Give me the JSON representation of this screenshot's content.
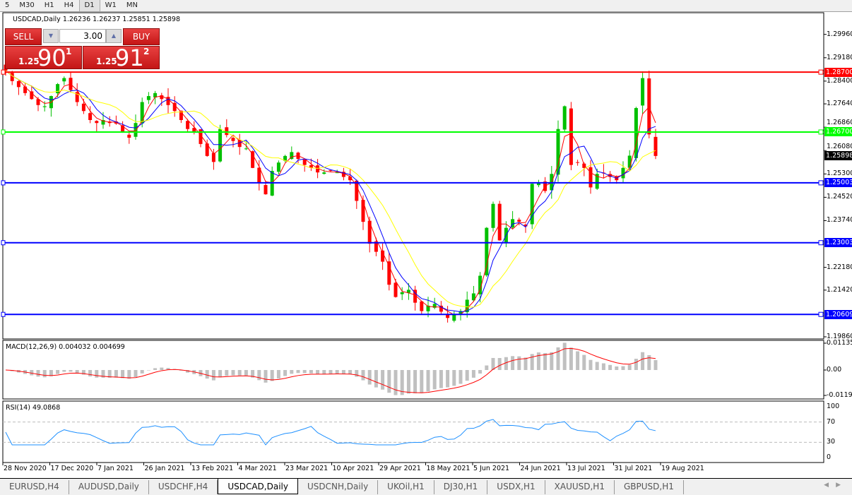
{
  "timeframes": [
    "5",
    "M30",
    "H1",
    "H4",
    "D1",
    "W1",
    "MN"
  ],
  "selected_timeframe": "D1",
  "chart": {
    "header": "USDCAD,Daily  1.26236 1.26237 1.25851 1.25898",
    "symbol": "USDCAD",
    "period": "Daily"
  },
  "trade_panel": {
    "sell_label": "SELL",
    "buy_label": "BUY",
    "volume": "3.00",
    "bid": {
      "prefix": "1.25",
      "big": "90",
      "sup": "1"
    },
    "ask": {
      "prefix": "1.25",
      "big": "91",
      "sup": "2"
    }
  },
  "price_axis": {
    "ticks": [
      "1.29960",
      "1.29180",
      "1.28400",
      "1.27640",
      "1.26860",
      "1.26080",
      "1.25300",
      "1.24520",
      "1.23740",
      "1.22180",
      "1.21420",
      "1.19860"
    ],
    "min": 1.1986,
    "max": 1.2996,
    "current": "1.25898"
  },
  "horizontal_lines": [
    {
      "price": 1.287,
      "label": "1.28700",
      "color": "#ff0000"
    },
    {
      "price": 1.267,
      "label": "1.26700",
      "color": "#00ff00"
    },
    {
      "price": 1.25003,
      "label": "1.25003",
      "color": "#0000ff"
    },
    {
      "price": 1.23003,
      "label": "1.23003",
      "color": "#0000ff"
    },
    {
      "price": 1.20609,
      "label": "1.20609",
      "color": "#0000ff"
    }
  ],
  "colors": {
    "bull": "#00c000",
    "bear": "#ff0000",
    "ma_fast": "#ff0000",
    "ma_mid": "#0000ff",
    "ma_slow": "#ffff00",
    "macd_hist": "#c0c0c0",
    "macd_signal": "#ff0000",
    "rsi": "#1e90ff"
  },
  "closes": [
    1.2875,
    1.284,
    1.282,
    1.28,
    1.278,
    1.276,
    1.2756,
    1.279,
    1.283,
    1.285,
    1.281,
    1.277,
    1.274,
    1.271,
    1.27,
    1.271,
    1.27,
    1.2698,
    1.267,
    1.2651,
    1.27,
    1.277,
    1.279,
    1.28,
    1.278,
    1.276,
    1.274,
    1.271,
    1.268,
    1.267,
    1.263,
    1.259,
    1.257,
    1.268,
    1.266,
    1.264,
    1.262,
    1.2615,
    1.255,
    1.25,
    1.2462,
    1.254,
    1.2568,
    1.259,
    1.2603,
    1.258,
    1.256,
    1.255,
    1.2535,
    1.2535,
    1.254,
    1.2535,
    1.252,
    1.2509,
    1.244,
    1.237,
    1.2297,
    1.227,
    1.2237,
    1.216,
    1.2119,
    1.2135,
    1.2143,
    1.21,
    1.2072,
    1.209,
    1.2096,
    1.207,
    1.2049,
    1.206,
    1.2072,
    1.211,
    1.2131,
    1.219,
    1.235,
    1.243,
    1.2308,
    1.235,
    1.2379,
    1.237,
    1.2355,
    1.2497,
    1.25,
    1.2473,
    1.253,
    1.268,
    1.2756,
    1.256,
    1.2568,
    1.255,
    1.2485,
    1.253,
    1.2533,
    1.252,
    1.2509,
    1.255,
    1.2591,
    1.275,
    1.285,
    1.2662,
    1.259
  ],
  "macd": {
    "label": "MACD(12,26,9) 0.004032 0.004699",
    "ticks": [
      "0.01135",
      "0.00",
      "-0.01190"
    ],
    "max": 0.01135,
    "min": -0.0119
  },
  "rsi": {
    "label": "RSI(14) 49.0868",
    "ticks": [
      "100",
      "70",
      "30",
      "0"
    ],
    "levels": [
      70,
      30
    ]
  },
  "dates": [
    "28 Nov 2020",
    "17 Dec 2020",
    "7 Jan 2021",
    "26 Jan 2021",
    "13 Feb 2021",
    "4 Mar 2021",
    "23 Mar 2021",
    "10 Apr 2021",
    "29 Apr 2021",
    "18 May 2021",
    "5 Jun 2021",
    "24 Jun 2021",
    "13 Jul 2021",
    "31 Jul 2021",
    "19 Aug 2021"
  ],
  "tabs": [
    "EURUSD,H4",
    "AUDUSD,Daily",
    "USDCHF,H4",
    "USDCAD,Daily",
    "USDCNH,Daily",
    "UKOil,H1",
    "DJ30,H1",
    "USDX,H1",
    "XAUUSD,H1",
    "GBPUSD,H1"
  ],
  "active_tab": "USDCAD,Daily"
}
